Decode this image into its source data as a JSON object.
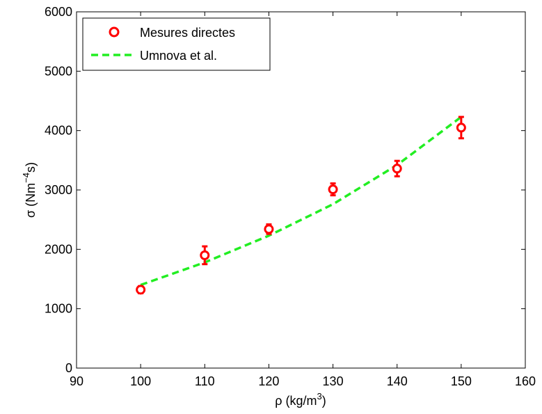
{
  "chart_data": {
    "type": "scatter",
    "xlabel": {
      "base": "ρ (kg/m",
      "sup": "3",
      "end": ")"
    },
    "ylabel": {
      "base": "σ (Nm",
      "sup": "−4",
      "end": "s)"
    },
    "xlim": [
      90,
      160
    ],
    "ylim": [
      0,
      6000
    ],
    "xticks": [
      90,
      100,
      110,
      120,
      130,
      140,
      150,
      160
    ],
    "yticks": [
      0,
      1000,
      2000,
      3000,
      4000,
      5000,
      6000
    ],
    "grid": false,
    "legend_position": "top-left",
    "series": [
      {
        "name": "Mesures directes",
        "kind": "markers-with-errorbars",
        "color": "#ff0000",
        "x": [
          100,
          110,
          120,
          130,
          140,
          150
        ],
        "y": [
          1320,
          1900,
          2340,
          3010,
          3360,
          4050
        ],
        "err": [
          60,
          150,
          80,
          100,
          130,
          180
        ]
      },
      {
        "name": "Umnova et al.",
        "kind": "dashed-line",
        "color": "#22ee22",
        "x": [
          100,
          110,
          120,
          130,
          140,
          150
        ],
        "y": [
          1400,
          1780,
          2230,
          2760,
          3420,
          4230
        ]
      }
    ]
  }
}
